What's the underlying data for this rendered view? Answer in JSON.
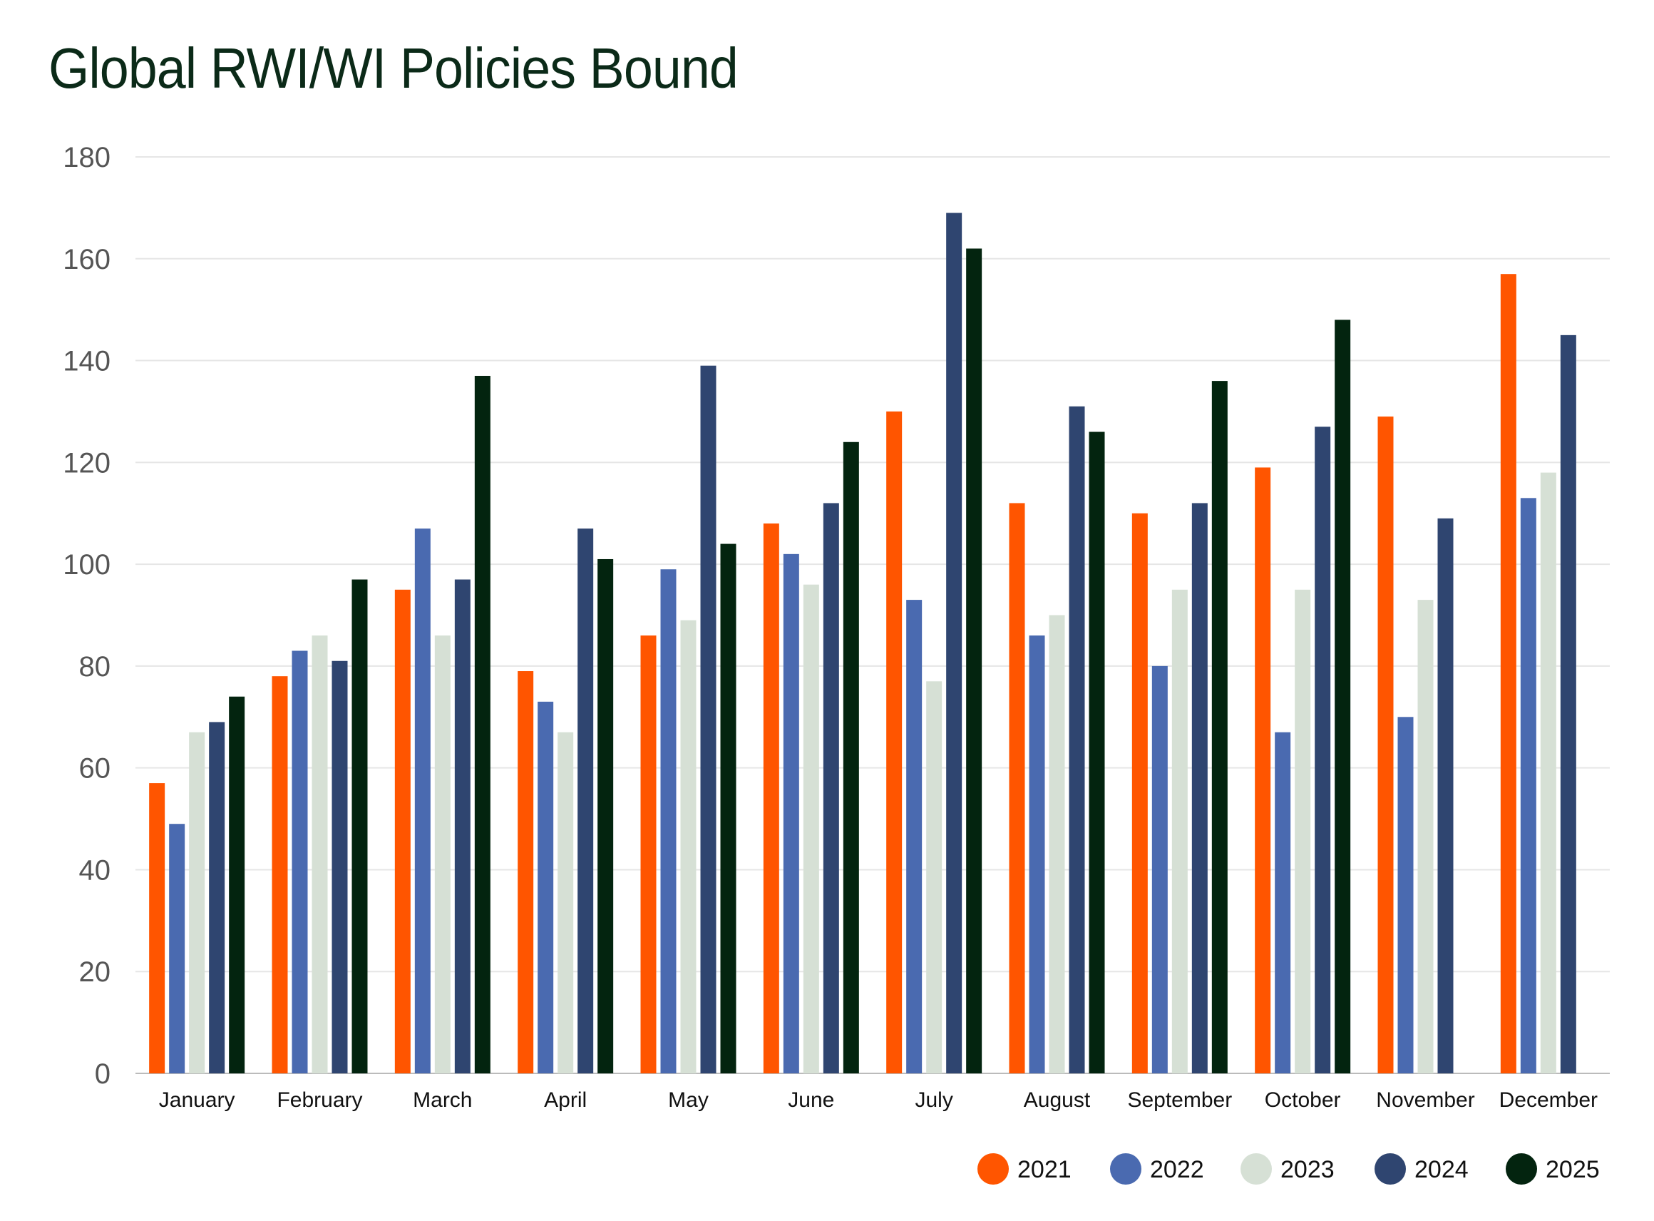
{
  "chart_data": {
    "type": "bar",
    "title": "Global RWI/WI Policies Bound",
    "xlabel": "",
    "ylabel": "",
    "ylim": [
      0,
      180
    ],
    "yticks": [
      0,
      20,
      40,
      60,
      80,
      100,
      120,
      140,
      160,
      180
    ],
    "grid": true,
    "legend_position": "bottom-right",
    "categories": [
      "January",
      "February",
      "March",
      "April",
      "May",
      "June",
      "July",
      "August",
      "September",
      "October",
      "November",
      "December"
    ],
    "series": [
      {
        "name": "2021",
        "color": "#ff5500",
        "values": [
          57,
          78,
          95,
          79,
          86,
          108,
          130,
          112,
          110,
          119,
          129,
          157
        ]
      },
      {
        "name": "2022",
        "color": "#4a6ab0",
        "values": [
          49,
          83,
          107,
          73,
          99,
          102,
          93,
          86,
          80,
          67,
          70,
          113
        ]
      },
      {
        "name": "2023",
        "color": "#d6e0d5",
        "values": [
          67,
          86,
          86,
          67,
          89,
          96,
          77,
          90,
          95,
          95,
          93,
          118
        ]
      },
      {
        "name": "2024",
        "color": "#2f4570",
        "values": [
          69,
          81,
          97,
          107,
          139,
          112,
          169,
          131,
          112,
          127,
          109,
          145
        ]
      },
      {
        "name": "2025",
        "color": "#03240f",
        "values": [
          74,
          97,
          137,
          101,
          104,
          124,
          162,
          126,
          136,
          148,
          null,
          null
        ]
      }
    ]
  }
}
